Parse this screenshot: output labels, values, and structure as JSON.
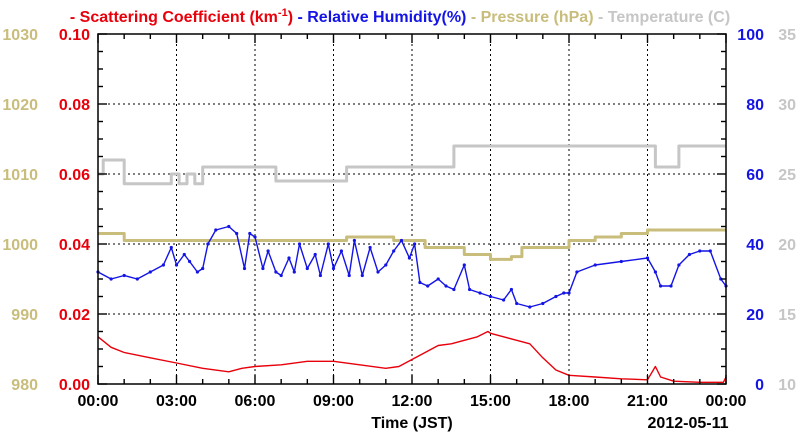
{
  "chart_data": {
    "type": "line",
    "legend": [
      {
        "label": "Scattering Coefficient (km",
        "sup": "-1",
        "suffix": ")",
        "color": "#e8000b"
      },
      {
        "label": "Relative Humidity(%)",
        "color": "#1414e6"
      },
      {
        "label": "Pressure (hPa)",
        "color": "#c9bd7c"
      },
      {
        "label": "Temperature (C)",
        "color": "#c6c6c6"
      }
    ],
    "xlabel": "Time (JST)",
    "date_label": "2012-05-11",
    "x_ticks": [
      "00:00",
      "03:00",
      "06:00",
      "09:00",
      "12:00",
      "15:00",
      "18:00",
      "21:00",
      "00:00"
    ],
    "x_range_hours": [
      0,
      24
    ],
    "grid": true,
    "axes": {
      "scattering": {
        "ticks": [
          "0.00",
          "0.02",
          "0.04",
          "0.06",
          "0.08",
          "0.10"
        ],
        "range": [
          0,
          0.1
        ],
        "color": "#e8000b"
      },
      "pressure": {
        "ticks": [
          "980",
          "990",
          "1000",
          "1010",
          "1020",
          "1030"
        ],
        "range": [
          980,
          1030
        ],
        "color": "#c9bd7c"
      },
      "humidity": {
        "ticks": [
          "0",
          "20",
          "40",
          "60",
          "80",
          "100"
        ],
        "range": [
          0,
          100
        ],
        "color": "#1414e6"
      },
      "temperature": {
        "ticks": [
          "10",
          "15",
          "20",
          "25",
          "30",
          "35"
        ],
        "range": [
          10,
          35
        ],
        "color": "#c6c6c6"
      }
    },
    "series": [
      {
        "name": "Scattering Coefficient",
        "axis": "scattering",
        "color": "#e8000b",
        "points": [
          [
            0,
            0.0135
          ],
          [
            0.5,
            0.0105
          ],
          [
            1,
            0.009
          ],
          [
            2,
            0.0075
          ],
          [
            3,
            0.006
          ],
          [
            4,
            0.0045
          ],
          [
            5,
            0.0035
          ],
          [
            5.5,
            0.0045
          ],
          [
            6,
            0.005
          ],
          [
            7,
            0.0055
          ],
          [
            8,
            0.0065
          ],
          [
            9,
            0.0065
          ],
          [
            10,
            0.0055
          ],
          [
            11,
            0.0045
          ],
          [
            11.5,
            0.005
          ],
          [
            12,
            0.007
          ],
          [
            12.5,
            0.009
          ],
          [
            13,
            0.011
          ],
          [
            13.5,
            0.0115
          ],
          [
            14,
            0.0125
          ],
          [
            14.5,
            0.0135
          ],
          [
            14.9,
            0.015
          ],
          [
            15,
            0.0145
          ],
          [
            15.5,
            0.0135
          ],
          [
            16,
            0.0125
          ],
          [
            16.5,
            0.0115
          ],
          [
            17,
            0.0075
          ],
          [
            17.5,
            0.004
          ],
          [
            18,
            0.0025
          ],
          [
            19,
            0.002
          ],
          [
            20,
            0.0015
          ],
          [
            21,
            0.0012
          ],
          [
            21.3,
            0.005
          ],
          [
            21.5,
            0.002
          ],
          [
            22,
            0.0008
          ],
          [
            23,
            0.0005
          ],
          [
            23.9,
            0.0005
          ],
          [
            24,
            0.002
          ]
        ]
      },
      {
        "name": "Relative Humidity",
        "axis": "humidity",
        "color": "#1414e6",
        "points": [
          [
            0,
            32
          ],
          [
            0.5,
            30
          ],
          [
            1,
            31
          ],
          [
            1.5,
            30
          ],
          [
            2,
            32
          ],
          [
            2.5,
            34
          ],
          [
            2.8,
            39
          ],
          [
            3,
            34
          ],
          [
            3.3,
            37
          ],
          [
            3.5,
            35
          ],
          [
            3.8,
            32
          ],
          [
            4,
            33
          ],
          [
            4.2,
            40
          ],
          [
            4.5,
            44
          ],
          [
            5,
            45
          ],
          [
            5.3,
            43
          ],
          [
            5.6,
            33
          ],
          [
            5.8,
            43
          ],
          [
            6,
            42
          ],
          [
            6.3,
            33
          ],
          [
            6.5,
            38
          ],
          [
            6.8,
            32
          ],
          [
            7,
            31
          ],
          [
            7.3,
            36
          ],
          [
            7.5,
            32
          ],
          [
            7.7,
            40
          ],
          [
            8,
            33
          ],
          [
            8.3,
            37
          ],
          [
            8.5,
            31
          ],
          [
            8.8,
            40
          ],
          [
            9,
            33
          ],
          [
            9.3,
            38
          ],
          [
            9.6,
            31
          ],
          [
            9.8,
            41
          ],
          [
            10.1,
            31
          ],
          [
            10.4,
            39
          ],
          [
            10.7,
            32
          ],
          [
            11,
            34
          ],
          [
            11.3,
            38
          ],
          [
            11.6,
            41
          ],
          [
            11.9,
            36
          ],
          [
            12.1,
            40
          ],
          [
            12.3,
            29
          ],
          [
            12.6,
            28
          ],
          [
            13,
            30
          ],
          [
            13.3,
            28
          ],
          [
            13.6,
            27
          ],
          [
            14,
            34
          ],
          [
            14.2,
            27
          ],
          [
            14.6,
            26
          ],
          [
            15,
            25
          ],
          [
            15.5,
            24
          ],
          [
            15.8,
            27
          ],
          [
            16,
            23
          ],
          [
            16.5,
            22
          ],
          [
            17,
            23
          ],
          [
            17.5,
            25
          ],
          [
            17.8,
            26
          ],
          [
            18,
            26
          ],
          [
            18.3,
            32
          ],
          [
            19,
            34
          ],
          [
            20,
            35
          ],
          [
            21,
            36
          ],
          [
            21.3,
            32
          ],
          [
            21.5,
            28
          ],
          [
            21.9,
            28
          ],
          [
            22.2,
            34
          ],
          [
            22.6,
            37
          ],
          [
            23,
            38
          ],
          [
            23.4,
            38
          ],
          [
            23.8,
            30
          ],
          [
            24,
            28
          ]
        ]
      },
      {
        "name": "Pressure",
        "axis": "pressure",
        "color": "#c9bd7c",
        "points": [
          [
            0,
            1001.5
          ],
          [
            1,
            1000.5
          ],
          [
            9.5,
            1001
          ],
          [
            11.3,
            1000.5
          ],
          [
            12.5,
            999.5
          ],
          [
            14,
            998.5
          ],
          [
            14.5,
            998.5
          ],
          [
            15,
            997.8
          ],
          [
            15.8,
            998.2
          ],
          [
            16.2,
            999.5
          ],
          [
            18,
            1000.5
          ],
          [
            19,
            1001
          ],
          [
            20,
            1001.5
          ],
          [
            21,
            1002
          ],
          [
            24,
            1002
          ]
        ]
      },
      {
        "name": "Temperature",
        "axis": "temperature",
        "color": "#c6c6c6",
        "points": [
          [
            0,
            25
          ],
          [
            0.2,
            26
          ],
          [
            1,
            24.3
          ],
          [
            2.6,
            24.3
          ],
          [
            2.8,
            25
          ],
          [
            3.1,
            24.3
          ],
          [
            3.4,
            25
          ],
          [
            3.7,
            24.3
          ],
          [
            4,
            25.5
          ],
          [
            6.7,
            25.5
          ],
          [
            6.8,
            24.5
          ],
          [
            9,
            24.5
          ],
          [
            9.5,
            25.5
          ],
          [
            13.5,
            25.5
          ],
          [
            13.6,
            27
          ],
          [
            21,
            27
          ],
          [
            21.3,
            25.5
          ],
          [
            22,
            25.5
          ],
          [
            22.2,
            27
          ],
          [
            24,
            27
          ]
        ]
      }
    ]
  }
}
